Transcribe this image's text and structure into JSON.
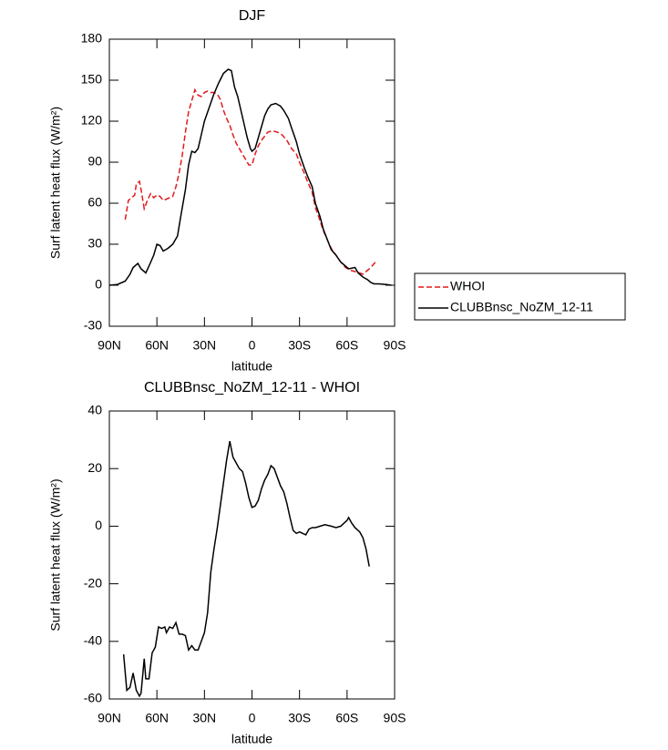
{
  "chart_data": [
    {
      "type": "line",
      "title": "DJF",
      "xlabel": "latitude",
      "ylabel": "Surf latent heat flux (W/m²)",
      "xlim": [
        90,
        -90
      ],
      "xticks": [
        {
          "value": 90,
          "label": "90N"
        },
        {
          "value": 60,
          "label": "60N"
        },
        {
          "value": 30,
          "label": "30N"
        },
        0,
        {
          "value": -30,
          "label": "30S"
        },
        {
          "value": -60,
          "label": "60S"
        },
        {
          "value": -90,
          "label": "90S"
        }
      ],
      "ylim": [
        -30,
        180
      ],
      "yticks": [
        -30,
        0,
        30,
        60,
        90,
        120,
        150,
        180
      ],
      "legend": "outside right",
      "series": [
        {
          "name": "WHOI",
          "color": "#e41a1c",
          "linestyle": "dashed",
          "x": [
            80,
            78,
            76,
            74,
            73,
            71,
            70,
            68,
            66,
            64,
            62,
            60,
            58,
            56,
            54,
            52,
            50,
            48,
            46,
            44,
            42,
            40,
            38,
            36,
            34,
            32,
            30,
            28,
            26,
            24,
            22,
            20,
            18,
            16,
            14,
            12,
            10,
            8,
            6,
            4,
            2,
            0,
            -2,
            -4,
            -6,
            -8,
            -10,
            -13,
            -16,
            -19,
            -22,
            -25,
            -28,
            -30,
            -33,
            -35,
            -38,
            -40,
            -43,
            -45,
            -48,
            -50,
            -53,
            -56,
            -59,
            -62,
            -65,
            -68,
            -70,
            -72,
            -75,
            -78
          ],
          "values": [
            48,
            62,
            64,
            66,
            74,
            76,
            70,
            56,
            62,
            67,
            64,
            66,
            65,
            62,
            63,
            64,
            65,
            72,
            82,
            95,
            112,
            127,
            135,
            143,
            139,
            138,
            141,
            142,
            141,
            141,
            140,
            136,
            128,
            122,
            117,
            110,
            104,
            100,
            96,
            92,
            88,
            88,
            96,
            102,
            106,
            109,
            112,
            113,
            112,
            110,
            106,
            100,
            96,
            90,
            82,
            76,
            68,
            57,
            47,
            40,
            32,
            27,
            22,
            17,
            13,
            11,
            10,
            9,
            8,
            10,
            13,
            17
          ]
        },
        {
          "name": "CLUBBnsc_NoZM_12-11",
          "color": "#000000",
          "linestyle": "solid",
          "x": [
            90,
            85,
            80,
            77,
            75,
            72,
            70,
            67,
            65,
            62,
            60,
            58,
            56,
            53,
            50,
            47,
            45,
            42,
            40,
            38,
            36,
            34,
            32,
            30,
            27,
            24,
            21,
            18,
            15,
            13,
            11,
            9,
            7,
            5,
            3,
            1,
            0,
            -2,
            -4,
            -6,
            -8,
            -10,
            -12,
            -15,
            -18,
            -20,
            -23,
            -25,
            -28,
            -30,
            -33,
            -35,
            -38,
            -40,
            -43,
            -45,
            -48,
            -50,
            -53,
            -56,
            -59,
            -61,
            -65,
            -67,
            -70,
            -73,
            -75,
            -77,
            -80,
            -85,
            -88
          ],
          "values": [
            0,
            0.5,
            3,
            8,
            13,
            16,
            12,
            9,
            14,
            22,
            30,
            29,
            25,
            27,
            30,
            36,
            50,
            70,
            88,
            98,
            97,
            100,
            110,
            120,
            130,
            140,
            148,
            155,
            158,
            157,
            145,
            138,
            128,
            118,
            108,
            100,
            98,
            100,
            108,
            116,
            124,
            129,
            132,
            133,
            131,
            128,
            122,
            115,
            105,
            96,
            86,
            80,
            72,
            60,
            50,
            41,
            32,
            26,
            22,
            17,
            14,
            12,
            13,
            9,
            6,
            4,
            2,
            1,
            1,
            0.5,
            0
          ]
        }
      ]
    },
    {
      "type": "line",
      "title": "CLUBBnsc_NoZM_12-11 - WHOI",
      "xlabel": "latitude",
      "ylabel": "Surf latent heat flux (W/m²)",
      "xlim": [
        90,
        -90
      ],
      "xticks": [
        {
          "value": 90,
          "label": "90N"
        },
        {
          "value": 60,
          "label": "60N"
        },
        {
          "value": 30,
          "label": "30N"
        },
        0,
        {
          "value": -30,
          "label": "30S"
        },
        {
          "value": -60,
          "label": "60S"
        },
        {
          "value": -90,
          "label": "90S"
        }
      ],
      "ylim": [
        -60,
        40
      ],
      "yticks": [
        -60,
        -40,
        -20,
        0,
        20,
        40
      ],
      "series": [
        {
          "color": "#000000",
          "linestyle": "solid",
          "x": [
            81,
            79,
            77,
            75,
            73,
            71,
            70,
            68,
            67,
            65,
            63,
            61,
            59,
            57,
            55,
            54,
            52,
            50,
            48,
            46,
            44,
            42,
            40,
            38,
            36,
            34,
            32,
            30,
            28,
            26,
            24,
            22,
            20,
            18,
            16,
            14,
            12,
            10,
            8,
            6,
            4,
            2,
            0,
            -2,
            -4,
            -6,
            -8,
            -10,
            -12,
            -14,
            -16,
            -18,
            -20,
            -22,
            -24,
            -26,
            -28,
            -30,
            -32,
            -34,
            -36,
            -38,
            -40,
            -43,
            -46,
            -50,
            -53,
            -56,
            -58,
            -60,
            -61,
            -63,
            -65,
            -68,
            -70,
            -72,
            -74
          ],
          "values": [
            -44.5,
            -57,
            -56,
            -51,
            -57,
            -59,
            -58,
            -46,
            -53,
            -53,
            -44,
            -42,
            -35,
            -35.5,
            -35,
            -37,
            -35,
            -35.5,
            -33.5,
            -37.5,
            -37.5,
            -38,
            -43,
            -41.5,
            -43,
            -43,
            -40,
            -37,
            -30,
            -16,
            -8,
            -1,
            7,
            15,
            23,
            29.5,
            24,
            22,
            20,
            19,
            15,
            10,
            6.5,
            7,
            9,
            13,
            16,
            18,
            21,
            20,
            17,
            14,
            12,
            8,
            3,
            -1.5,
            -2.5,
            -2,
            -2.5,
            -3,
            -1,
            -0.5,
            -0.5,
            0,
            0.5,
            0,
            -0.5,
            0,
            1,
            2,
            3,
            1,
            -0.5,
            -2,
            -4,
            -8,
            -14
          ]
        }
      ]
    }
  ]
}
